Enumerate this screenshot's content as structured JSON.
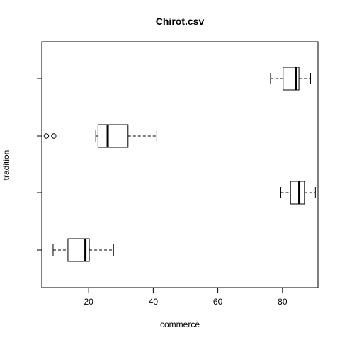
{
  "chart_data": {
    "type": "boxplot",
    "orientation": "horizontal",
    "title": "Chirot.csv",
    "xlabel": "commerce",
    "ylabel": "tradition",
    "xlim": [
      5.5,
      91
    ],
    "xticks": [
      20,
      40,
      60,
      80
    ],
    "xtick_labels": [
      "20",
      "40",
      "60",
      "80"
    ],
    "ytick_labels": [
      "",
      "",
      "",
      ""
    ],
    "boxes": [
      {
        "whisker_low": 9,
        "q1": 13.6,
        "median": 19,
        "q3": 20.2,
        "whisker_high": 27.7,
        "outliers": []
      },
      {
        "whisker_low": 79.5,
        "q1": 82.5,
        "median": 85.2,
        "q3": 86.8,
        "whisker_high": 90.2,
        "outliers": []
      },
      {
        "whisker_low": 22.2,
        "q1": 22.9,
        "median": 25.9,
        "q3": 32.2,
        "whisker_high": 41.1,
        "outliers": [
          6.9,
          9.2
        ]
      },
      {
        "whisker_low": 76.3,
        "q1": 80.2,
        "median": 84.1,
        "q3": 85.1,
        "whisker_high": 88.7,
        "outliers": []
      }
    ],
    "grid": false,
    "legend": "none"
  }
}
